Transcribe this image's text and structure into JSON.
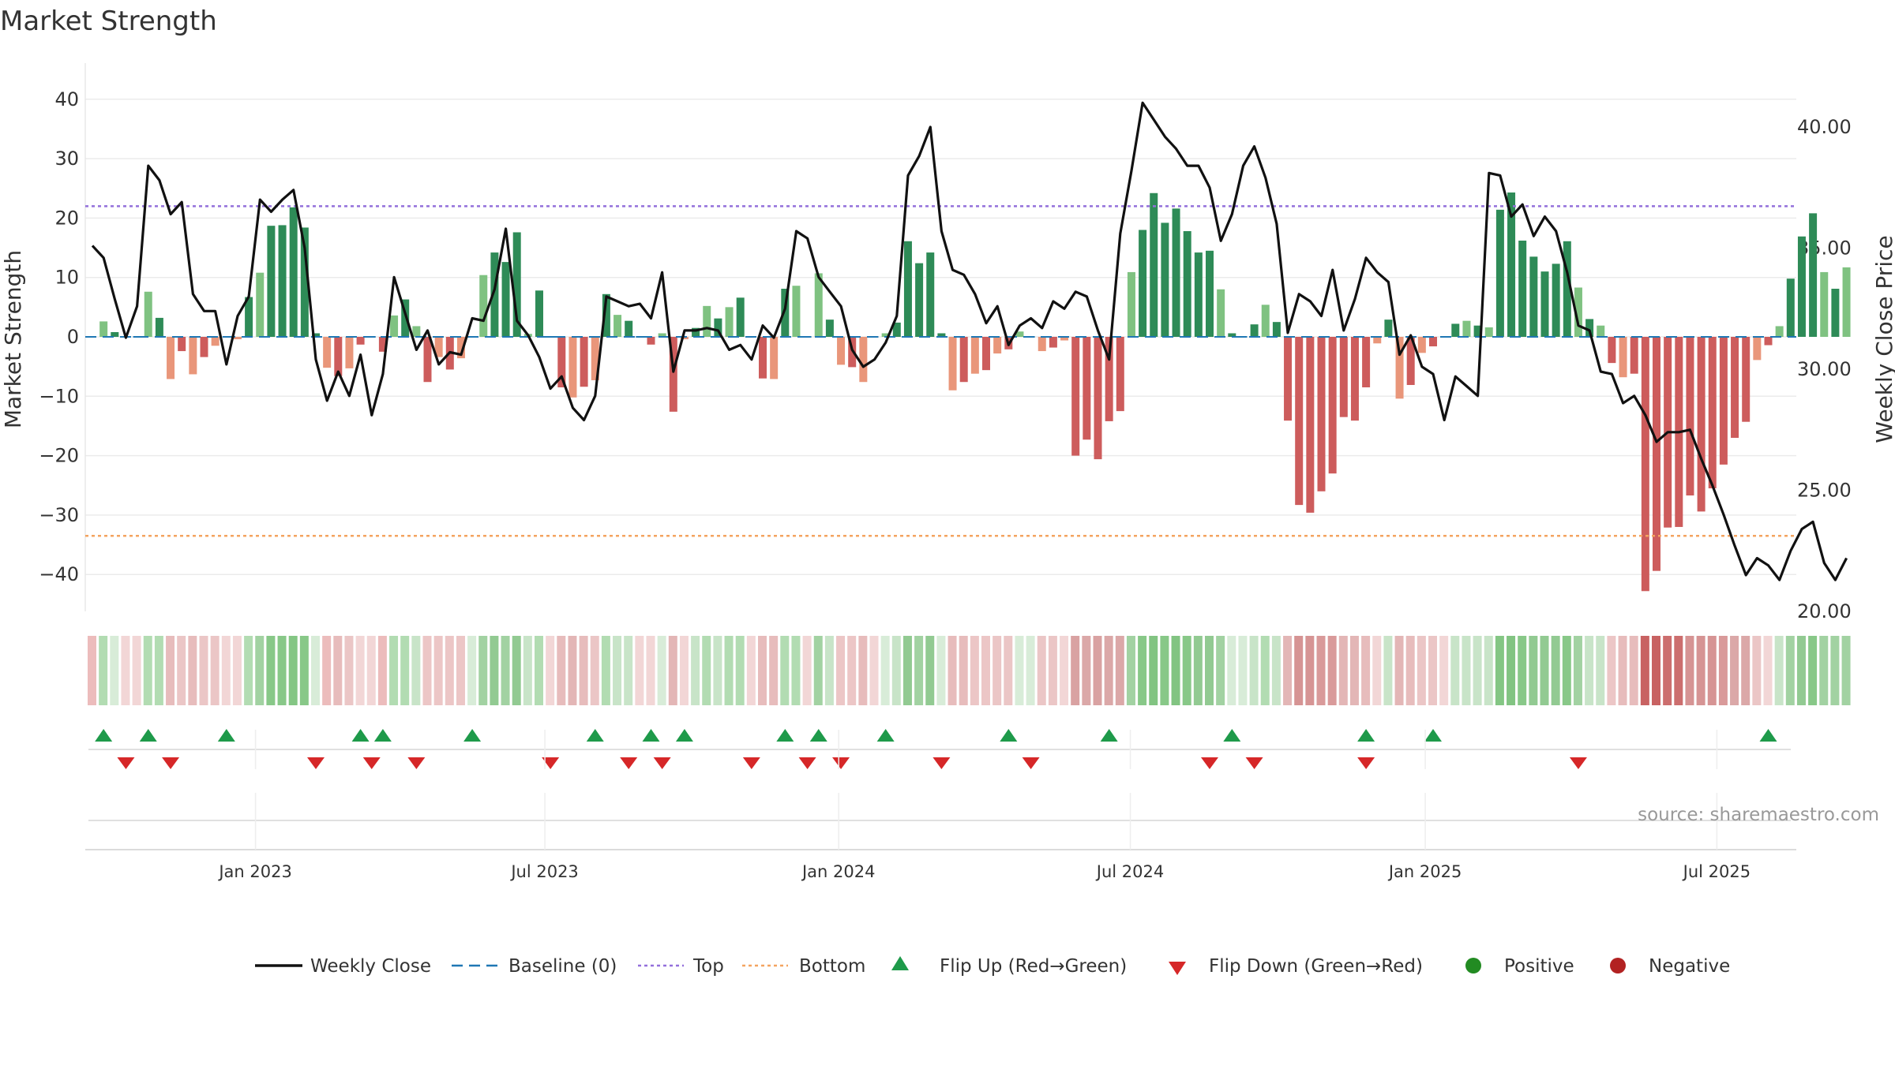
{
  "title": "Market Strength",
  "source": "source: sharemaestro.com",
  "chart_data": {
    "type": "bar",
    "title": "Market Strength",
    "ylabel": "Market Strength",
    "y2label": "Weekly Close Price",
    "ylim": [
      -46,
      47
    ],
    "y2lim": [
      19.9,
      42.0
    ],
    "yticks": [
      "40",
      "30",
      "20",
      "10",
      "0",
      "−10",
      "−20",
      "−30",
      "−40"
    ],
    "ytick_values": [
      40,
      30,
      20,
      10,
      0,
      -10,
      -20,
      -30,
      -40
    ],
    "y2ticks": [
      "40.00",
      "35.00",
      "30.00",
      "25.00",
      "20.00"
    ],
    "y2tick_values": [
      40,
      35,
      30,
      25,
      20
    ],
    "xticks": [
      "Jan 2023",
      "Jul 2023",
      "Jan 2024",
      "Jul 2024",
      "Jan 2025",
      "Jul 2025"
    ],
    "xtick_weeks": [
      14.6,
      40.5,
      66.8,
      92.9,
      119.3,
      145.4
    ],
    "top_line": 22,
    "bottom_line": -33.5,
    "strength": [
      0.2,
      2.6,
      0.8,
      -0.2,
      -0.3,
      7.6,
      3.2,
      -7.1,
      -2.4,
      -6.3,
      -3.4,
      -1.5,
      -0.3,
      -0.4,
      6.7,
      10.8,
      18.7,
      18.8,
      21.8,
      18.4,
      0.6,
      -5.2,
      -6.6,
      -5.3,
      -1.3,
      -0.2,
      -2.5,
      3.6,
      6.3,
      1.8,
      -7.6,
      -3.4,
      -5.5,
      -3.6,
      0.1,
      10.4,
      14.2,
      12.6,
      17.6,
      0.5,
      7.8,
      -0.1,
      -8.5,
      -10.2,
      -8.4,
      -7.3,
      7.2,
      3.7,
      2.7,
      -0.1,
      -1.3,
      0.6,
      -12.6,
      -0.4,
      1.5,
      5.2,
      3.1,
      5.0,
      6.6,
      -0.3,
      -7.0,
      -7.1,
      8.1,
      8.6,
      -0.2,
      10.7,
      2.9,
      -4.7,
      -5.1,
      -7.6,
      -0.2,
      0.6,
      2.4,
      16.1,
      12.4,
      14.2,
      0.6,
      -9.0,
      -7.6,
      -6.2,
      -5.6,
      -2.8,
      -2.1,
      0.9,
      0.1,
      -2.4,
      -1.8,
      -0.6,
      -20.0,
      -17.3,
      -20.6,
      -14.2,
      -12.5,
      10.9,
      18.0,
      24.2,
      19.2,
      21.6,
      17.8,
      14.2,
      14.5,
      8.0,
      0.6,
      0.0,
      2.1,
      5.4,
      2.5,
      -14.1,
      -28.3,
      -29.6,
      -26.0,
      -23.0,
      -13.5,
      -14.1,
      -8.5,
      -1.1,
      2.9,
      -10.4,
      -8.1,
      -2.7,
      -1.6,
      -0.2,
      2.2,
      2.7,
      1.9,
      1.6,
      21.4,
      24.3,
      16.2,
      13.5,
      11.0,
      12.3,
      16.1,
      8.3,
      3.0,
      1.9,
      -4.4,
      -6.8,
      -6.2,
      -42.8,
      -39.4,
      -32.1,
      -32.0,
      -26.7,
      -29.4,
      -25.5,
      -21.5,
      -17.0,
      -14.3,
      -3.9,
      -1.4,
      1.8,
      9.8,
      16.9,
      20.8,
      10.9,
      8.1,
      11.7
    ],
    "close": [
      35.1,
      34.6,
      32.9,
      31.3,
      32.6,
      38.4,
      37.8,
      36.4,
      36.9,
      33.1,
      32.4,
      32.4,
      30.2,
      32.2,
      33.0,
      37.0,
      36.5,
      37.0,
      37.4,
      35.0,
      30.4,
      28.7,
      29.9,
      28.9,
      30.6,
      28.1,
      29.8,
      33.8,
      32.3,
      30.8,
      31.6,
      30.2,
      30.7,
      30.6,
      32.1,
      32.0,
      33.3,
      35.8,
      32.0,
      31.4,
      30.5,
      29.2,
      29.7,
      28.4,
      27.9,
      28.9,
      33.0,
      32.8,
      32.6,
      32.7,
      32.1,
      34.0,
      29.9,
      31.6,
      31.6,
      31.7,
      31.6,
      30.8,
      31.0,
      30.4,
      31.8,
      31.3,
      32.5,
      35.7,
      35.4,
      33.8,
      33.2,
      32.6,
      30.8,
      30.1,
      30.4,
      31.1,
      32.2,
      38.0,
      38.8,
      40.0,
      35.7,
      34.1,
      33.9,
      33.1,
      31.9,
      32.6,
      31.0,
      31.8,
      32.1,
      31.7,
      32.8,
      32.5,
      33.2,
      33.0,
      31.6,
      30.4,
      35.6,
      38.2,
      41.0,
      40.3,
      39.6,
      39.1,
      38.4,
      38.4,
      37.5,
      35.3,
      36.4,
      38.4,
      39.2,
      37.9,
      36.0,
      31.5,
      33.1,
      32.8,
      32.2,
      34.1,
      31.6,
      32.9,
      34.6,
      34.0,
      33.6,
      30.6,
      31.4,
      30.1,
      29.8,
      27.9,
      29.7,
      29.3,
      28.9,
      38.1,
      38.0,
      36.3,
      36.8,
      35.5,
      36.3,
      35.7,
      34.0,
      31.8,
      31.6,
      29.9,
      29.8,
      28.6,
      28.9,
      28.1,
      27.0,
      27.4,
      27.4,
      27.5,
      26.3,
      25.2,
      24.0,
      22.7,
      21.5,
      22.2,
      21.9,
      21.3,
      22.5,
      23.4,
      23.7,
      22.0,
      21.3,
      22.2
    ],
    "flip_up_weeks": [
      1,
      5,
      12,
      24,
      26,
      34,
      45,
      50,
      53,
      62,
      65,
      71,
      82,
      91,
      102,
      114,
      120,
      150
    ],
    "flip_down_weeks": [
      3,
      7,
      20,
      25,
      29,
      41,
      48,
      51,
      59,
      64,
      67,
      76,
      84,
      100,
      104,
      114,
      133
    ],
    "heat_colors": [
      "#ecbcbc",
      "#b2dcb2",
      "#d8ecd8",
      "#f2d6d6",
      "#f2d6d6",
      "#b2dcb2",
      "#b2dcb2",
      "#e7bcbc",
      "#ebc6c6",
      "#e7bcbc",
      "#ebc6c6",
      "#ebc6c6",
      "#f2d6d6",
      "#f2d6d6",
      "#b2dcb2",
      "#a2d2a2",
      "#88c888",
      "#88c888",
      "#84c684",
      "#88c888",
      "#d8ecd8",
      "#ecbcbc",
      "#e7bcbc",
      "#ebc6c6",
      "#f2d6d6",
      "#f2d6d6",
      "#ecbcbc",
      "#b2dcb2",
      "#b2dcb2",
      "#c8e4c8",
      "#ecc6c6",
      "#ecc6c6",
      "#ecc6c6",
      "#ecc6c6",
      "#d8ecd8",
      "#a2d2a2",
      "#92ca92",
      "#a2d2a2",
      "#92ca92",
      "#c8e4c8",
      "#b2dcb2",
      "#f2d6d6",
      "#e7bcbc",
      "#e3b6b6",
      "#e7bcbc",
      "#ebc6c6",
      "#b2dcb2",
      "#c8e4c8",
      "#c8e4c8",
      "#f2d6d6",
      "#f2d6d6",
      "#d8ecd8",
      "#e3b6b6",
      "#f2d6d6",
      "#c8e4c8",
      "#b2dcb2",
      "#c8e4c8",
      "#b2dcb2",
      "#b2dcb2",
      "#f2d6d6",
      "#e7bcbc",
      "#e7bcbc",
      "#b2dcb2",
      "#b2dcb2",
      "#f2d6d6",
      "#a2d2a2",
      "#c8e4c8",
      "#ecc6c6",
      "#ecc6c6",
      "#e7bcbc",
      "#f2d6d6",
      "#d8ecd8",
      "#c8e4c8",
      "#92ca92",
      "#a2d2a2",
      "#92ca92",
      "#d8ecd8",
      "#e7bcbc",
      "#e7bcbc",
      "#ecc6c6",
      "#ecc6c6",
      "#ebc6c6",
      "#ebc6c6",
      "#d8ecd8",
      "#d8ecd8",
      "#ebc6c6",
      "#ebc6c6",
      "#f2d6d6",
      "#d9a2a2",
      "#dba8a8",
      "#d9a2a2",
      "#dba8a8",
      "#dba8a8",
      "#a2d2a2",
      "#88c888",
      "#82c482",
      "#88c888",
      "#82c482",
      "#88c888",
      "#92ca92",
      "#92ca92",
      "#a2d2a2",
      "#d8ecd8",
      "#d8ecd8",
      "#c8e4c8",
      "#b2dcb2",
      "#c8e4c8",
      "#e3b6b6",
      "#d69494",
      "#d69494",
      "#d99a9a",
      "#d99a9a",
      "#e3b6b6",
      "#e3b6b6",
      "#e7bcbc",
      "#f2d6d6",
      "#c8e4c8",
      "#e3b6b6",
      "#e7bcbc",
      "#ebc6c6",
      "#ebc6c6",
      "#f2d6d6",
      "#c8e4c8",
      "#c8e4c8",
      "#c8e4c8",
      "#c8e4c8",
      "#84c684",
      "#82c482",
      "#88c888",
      "#92ca92",
      "#92ca92",
      "#92ca92",
      "#88c888",
      "#a2d2a2",
      "#c8e4c8",
      "#c8e4c8",
      "#ecc6c6",
      "#e7bcbc",
      "#e7bcbc",
      "#c86262",
      "#c86262",
      "#cc6e6e",
      "#cc6e6e",
      "#d69494",
      "#d69494",
      "#d69494",
      "#d99a9a",
      "#dba8a8",
      "#dba8a8",
      "#ebc6c6",
      "#f2d6d6",
      "#c8e4c8",
      "#a2d2a2",
      "#92ca92",
      "#88c888",
      "#a2d2a2",
      "#a2d2a2",
      "#a2d2a2"
    ]
  },
  "legend": {
    "weekly_close": "Weekly Close",
    "baseline": "Baseline (0)",
    "top": "Top",
    "bottom": "Bottom",
    "flip_up": "Flip Up (Red→Green)",
    "flip_down": "Flip Down (Green→Red)",
    "positive": "Positive",
    "negative": "Negative"
  },
  "colors": {
    "pos_strong": "#2e8b57",
    "pos_weak": "#7fc281",
    "neg_strong": "#cd5c5c",
    "neg_weak": "#e9967a",
    "top_line": "#9370db",
    "bottom_line": "#f4a460",
    "baseline": "#1f77b4",
    "flip_up": "#1e9a4a",
    "flip_down": "#d62728",
    "positive_dot": "#228b22",
    "negative_dot": "#b22222"
  }
}
